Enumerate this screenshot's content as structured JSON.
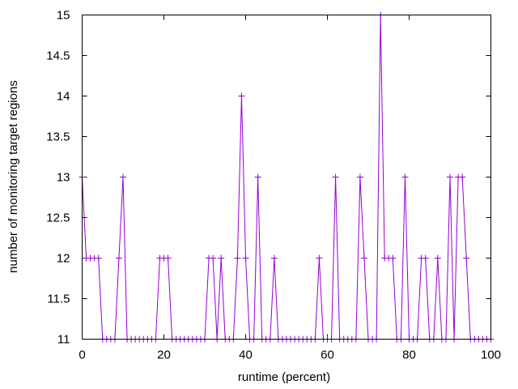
{
  "chart_data": {
    "type": "line",
    "title": "",
    "xlabel": "runtime (percent)",
    "ylabel": "number of monitoring target regions",
    "xlim": [
      0,
      100
    ],
    "ylim": [
      11,
      15
    ],
    "x_ticks": [
      0,
      20,
      40,
      60,
      80,
      100
    ],
    "y_ticks": [
      11,
      11.5,
      12,
      12.5,
      13,
      13.5,
      14,
      14.5,
      15
    ],
    "x_tick_labels": [
      "0",
      "20",
      "40",
      "60",
      "80",
      "100"
    ],
    "y_tick_labels": [
      "11",
      "11.5",
      "12",
      "12.5",
      "13",
      "13.5",
      "14",
      "14.5",
      "15"
    ],
    "grid": false,
    "legend": "none",
    "marker": "plus",
    "color": "#9400d3",
    "series": [
      {
        "x": [
          0,
          1,
          2,
          3,
          4,
          5,
          6,
          7,
          8,
          9,
          10,
          11,
          12,
          13,
          14,
          15,
          16,
          17,
          18,
          19,
          20,
          21,
          22,
          23,
          24,
          25,
          26,
          27,
          28,
          29,
          30,
          31,
          32,
          33,
          34,
          35,
          36,
          37,
          38,
          39,
          40,
          41,
          42,
          43,
          44,
          45,
          46,
          47,
          48,
          49,
          50,
          51,
          52,
          53,
          54,
          55,
          56,
          57,
          58,
          59,
          60,
          61,
          62,
          63,
          64,
          65,
          66,
          67,
          68,
          69,
          70,
          71,
          72,
          73,
          74,
          75,
          76,
          77,
          78,
          79,
          80,
          81,
          82,
          83,
          84,
          85,
          86,
          87,
          88,
          89,
          90,
          91,
          92,
          93,
          94,
          95,
          96,
          97,
          98,
          99,
          100
        ],
        "y": [
          13,
          12,
          12,
          12,
          12,
          11,
          11,
          11,
          11,
          12,
          13,
          11,
          11,
          11,
          11,
          11,
          11,
          11,
          11,
          12,
          12,
          12,
          11,
          11,
          11,
          11,
          11,
          11,
          11,
          11,
          11,
          12,
          12,
          11,
          12,
          11,
          11,
          11,
          12,
          14,
          12,
          11,
          11,
          13,
          11,
          11,
          11,
          12,
          11,
          11,
          11,
          11,
          11,
          11,
          11,
          11,
          11,
          11,
          12,
          11,
          11,
          11,
          13,
          11,
          11,
          11,
          11,
          11,
          13,
          12,
          11,
          11,
          11,
          15,
          12,
          12,
          12,
          11,
          11,
          13,
          11,
          11,
          11,
          12,
          12,
          11,
          11,
          12,
          11,
          11,
          13,
          11,
          13,
          13,
          12,
          11,
          11,
          11,
          11,
          11,
          11
        ]
      }
    ]
  }
}
